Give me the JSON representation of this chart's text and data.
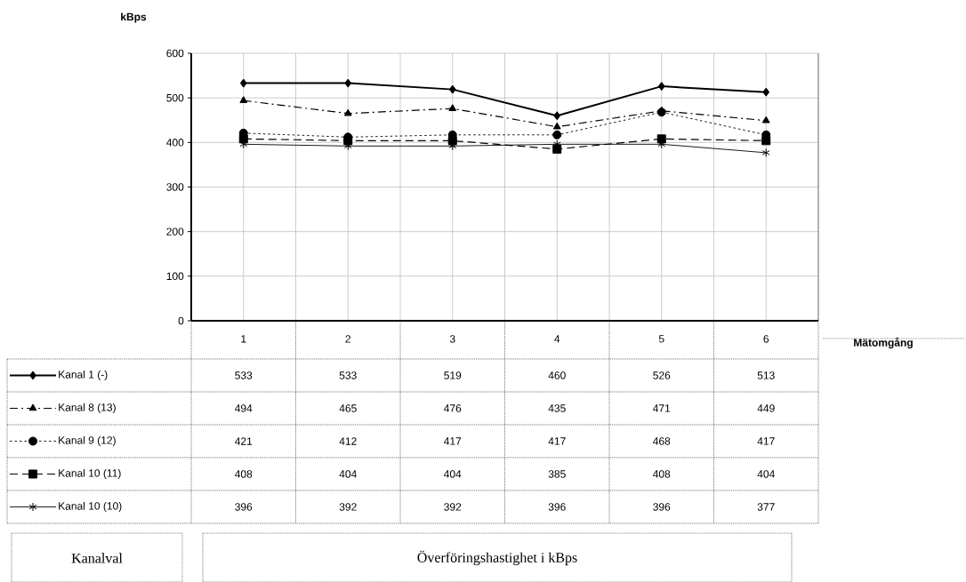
{
  "chart_data": {
    "type": "line",
    "xlabel": "Mätomgång",
    "ylabel": "kBps",
    "categories": [
      "1",
      "2",
      "3",
      "4",
      "5",
      "6"
    ],
    "series": [
      {
        "name": "Kanal 1 (-)",
        "color": "#000000",
        "marker": "diamond",
        "line_style": "solid",
        "values": [
          533,
          533,
          519,
          460,
          526,
          513
        ]
      },
      {
        "name": "Kanal 8 (13)",
        "color": "#000000",
        "marker": "triangle",
        "line_style": "dashdot",
        "values": [
          494,
          465,
          476,
          435,
          471,
          449
        ]
      },
      {
        "name": "Kanal 9 (12)",
        "color": "#000000",
        "marker": "circle",
        "line_style": "dotted",
        "values": [
          421,
          412,
          417,
          417,
          468,
          417
        ]
      },
      {
        "name": "Kanal 10 (11)",
        "color": "#000000",
        "marker": "square",
        "line_style": "dashed",
        "values": [
          408,
          404,
          404,
          385,
          408,
          404
        ]
      },
      {
        "name": "Kanal 10 (10)",
        "color": "#000000",
        "marker": "cross",
        "line_style": "solid",
        "values": [
          396,
          392,
          392,
          396,
          396,
          377
        ]
      }
    ],
    "ylim": [
      0,
      600
    ],
    "yticks": [
      0,
      100,
      200,
      300,
      400,
      500,
      600
    ],
    "grid": true,
    "legend": "bottom left",
    "data_labels": true,
    "annotations": [
      "Kanalval",
      "Överföringshastighet i kBps"
    ]
  }
}
